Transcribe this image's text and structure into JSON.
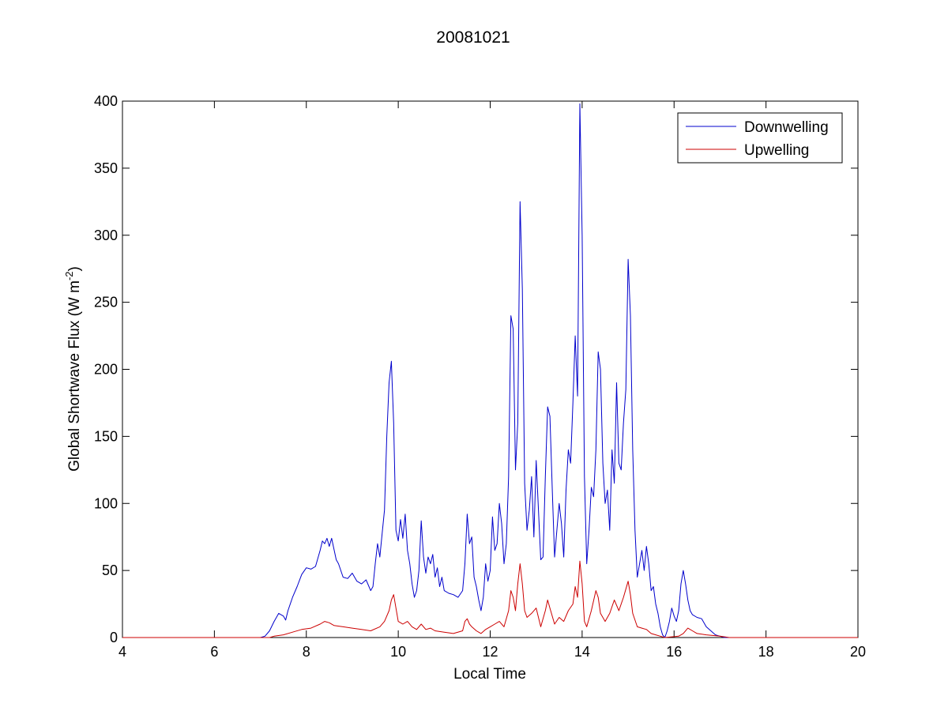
{
  "chart_data": {
    "type": "line",
    "title": "20081021",
    "xlabel": "Local Time",
    "ylabel": "Global Shortwave Flux (W m",
    "ylabel_sup": "-2",
    "ylabel_end": ")",
    "xlim": [
      4,
      20
    ],
    "ylim": [
      0,
      400
    ],
    "xticks": [
      4,
      6,
      8,
      10,
      12,
      14,
      16,
      18,
      20
    ],
    "yticks": [
      0,
      50,
      100,
      150,
      200,
      250,
      300,
      350,
      400
    ],
    "grid": false,
    "legend_position": "top-right",
    "series": [
      {
        "name": "Downwelling",
        "color": "#0000cc",
        "points": [
          [
            4.0,
            0
          ],
          [
            7.0,
            0
          ],
          [
            7.1,
            1
          ],
          [
            7.2,
            5
          ],
          [
            7.3,
            12
          ],
          [
            7.4,
            18
          ],
          [
            7.5,
            16
          ],
          [
            7.55,
            13
          ],
          [
            7.6,
            20
          ],
          [
            7.7,
            30
          ],
          [
            7.8,
            38
          ],
          [
            7.9,
            47
          ],
          [
            8.0,
            52
          ],
          [
            8.1,
            51
          ],
          [
            8.2,
            53
          ],
          [
            8.3,
            65
          ],
          [
            8.35,
            72
          ],
          [
            8.4,
            70
          ],
          [
            8.45,
            74
          ],
          [
            8.5,
            68
          ],
          [
            8.55,
            74
          ],
          [
            8.6,
            66
          ],
          [
            8.65,
            58
          ],
          [
            8.7,
            55
          ],
          [
            8.8,
            45
          ],
          [
            8.9,
            44
          ],
          [
            9.0,
            48
          ],
          [
            9.1,
            42
          ],
          [
            9.2,
            40
          ],
          [
            9.3,
            43
          ],
          [
            9.4,
            35
          ],
          [
            9.45,
            38
          ],
          [
            9.5,
            55
          ],
          [
            9.55,
            70
          ],
          [
            9.6,
            60
          ],
          [
            9.65,
            78
          ],
          [
            9.7,
            95
          ],
          [
            9.75,
            150
          ],
          [
            9.8,
            190
          ],
          [
            9.85,
            206
          ],
          [
            9.9,
            160
          ],
          [
            9.95,
            80
          ],
          [
            10.0,
            72
          ],
          [
            10.05,
            88
          ],
          [
            10.1,
            74
          ],
          [
            10.15,
            92
          ],
          [
            10.2,
            65
          ],
          [
            10.25,
            55
          ],
          [
            10.3,
            40
          ],
          [
            10.35,
            30
          ],
          [
            10.4,
            35
          ],
          [
            10.45,
            50
          ],
          [
            10.5,
            87
          ],
          [
            10.55,
            60
          ],
          [
            10.6,
            48
          ],
          [
            10.65,
            60
          ],
          [
            10.7,
            55
          ],
          [
            10.75,
            62
          ],
          [
            10.8,
            45
          ],
          [
            10.85,
            52
          ],
          [
            10.9,
            38
          ],
          [
            10.95,
            45
          ],
          [
            11.0,
            35
          ],
          [
            11.1,
            33
          ],
          [
            11.2,
            32
          ],
          [
            11.3,
            30
          ],
          [
            11.4,
            35
          ],
          [
            11.45,
            55
          ],
          [
            11.5,
            92
          ],
          [
            11.55,
            70
          ],
          [
            11.6,
            75
          ],
          [
            11.65,
            45
          ],
          [
            11.7,
            38
          ],
          [
            11.75,
            28
          ],
          [
            11.8,
            20
          ],
          [
            11.85,
            30
          ],
          [
            11.9,
            55
          ],
          [
            11.95,
            42
          ],
          [
            12.0,
            50
          ],
          [
            12.05,
            90
          ],
          [
            12.1,
            65
          ],
          [
            12.15,
            70
          ],
          [
            12.2,
            100
          ],
          [
            12.25,
            85
          ],
          [
            12.3,
            55
          ],
          [
            12.35,
            70
          ],
          [
            12.4,
            120
          ],
          [
            12.45,
            240
          ],
          [
            12.5,
            230
          ],
          [
            12.55,
            125
          ],
          [
            12.6,
            160
          ],
          [
            12.65,
            325
          ],
          [
            12.7,
            260
          ],
          [
            12.75,
            115
          ],
          [
            12.8,
            80
          ],
          [
            12.85,
            95
          ],
          [
            12.9,
            120
          ],
          [
            12.95,
            75
          ],
          [
            13.0,
            132
          ],
          [
            13.05,
            95
          ],
          [
            13.1,
            58
          ],
          [
            13.15,
            60
          ],
          [
            13.2,
            120
          ],
          [
            13.25,
            172
          ],
          [
            13.3,
            165
          ],
          [
            13.35,
            110
          ],
          [
            13.4,
            60
          ],
          [
            13.45,
            80
          ],
          [
            13.5,
            100
          ],
          [
            13.55,
            85
          ],
          [
            13.6,
            60
          ],
          [
            13.65,
            110
          ],
          [
            13.7,
            140
          ],
          [
            13.75,
            130
          ],
          [
            13.8,
            175
          ],
          [
            13.85,
            225
          ],
          [
            13.9,
            180
          ],
          [
            13.95,
            398
          ],
          [
            14.0,
            300
          ],
          [
            14.05,
            120
          ],
          [
            14.1,
            55
          ],
          [
            14.15,
            80
          ],
          [
            14.2,
            112
          ],
          [
            14.25,
            105
          ],
          [
            14.3,
            140
          ],
          [
            14.35,
            213
          ],
          [
            14.4,
            200
          ],
          [
            14.45,
            130
          ],
          [
            14.5,
            100
          ],
          [
            14.55,
            110
          ],
          [
            14.6,
            80
          ],
          [
            14.65,
            140
          ],
          [
            14.7,
            115
          ],
          [
            14.75,
            190
          ],
          [
            14.8,
            130
          ],
          [
            14.85,
            125
          ],
          [
            14.9,
            160
          ],
          [
            14.95,
            185
          ],
          [
            15.0,
            282
          ],
          [
            15.05,
            240
          ],
          [
            15.1,
            140
          ],
          [
            15.15,
            80
          ],
          [
            15.2,
            45
          ],
          [
            15.25,
            55
          ],
          [
            15.3,
            65
          ],
          [
            15.35,
            50
          ],
          [
            15.4,
            68
          ],
          [
            15.45,
            55
          ],
          [
            15.5,
            35
          ],
          [
            15.55,
            38
          ],
          [
            15.6,
            25
          ],
          [
            15.65,
            18
          ],
          [
            15.7,
            8
          ],
          [
            15.75,
            2
          ],
          [
            15.8,
            0
          ],
          [
            15.85,
            5
          ],
          [
            15.9,
            12
          ],
          [
            15.95,
            22
          ],
          [
            16.0,
            16
          ],
          [
            16.05,
            12
          ],
          [
            16.1,
            20
          ],
          [
            16.15,
            40
          ],
          [
            16.2,
            50
          ],
          [
            16.25,
            40
          ],
          [
            16.3,
            28
          ],
          [
            16.35,
            20
          ],
          [
            16.4,
            17
          ],
          [
            16.5,
            15
          ],
          [
            16.6,
            14
          ],
          [
            16.7,
            8
          ],
          [
            16.8,
            5
          ],
          [
            16.9,
            2
          ],
          [
            17.0,
            1
          ],
          [
            17.1,
            0
          ],
          [
            20.0,
            0
          ]
        ]
      },
      {
        "name": "Upwelling",
        "color": "#cc0000",
        "points": [
          [
            4.0,
            0
          ],
          [
            7.2,
            0
          ],
          [
            7.3,
            1
          ],
          [
            7.5,
            2
          ],
          [
            7.7,
            4
          ],
          [
            7.9,
            6
          ],
          [
            8.1,
            7
          ],
          [
            8.3,
            10
          ],
          [
            8.4,
            12
          ],
          [
            8.5,
            11
          ],
          [
            8.6,
            9
          ],
          [
            8.8,
            8
          ],
          [
            9.0,
            7
          ],
          [
            9.2,
            6
          ],
          [
            9.4,
            5
          ],
          [
            9.6,
            8
          ],
          [
            9.7,
            12
          ],
          [
            9.8,
            20
          ],
          [
            9.85,
            28
          ],
          [
            9.9,
            32
          ],
          [
            9.95,
            22
          ],
          [
            10.0,
            12
          ],
          [
            10.1,
            10
          ],
          [
            10.2,
            12
          ],
          [
            10.3,
            8
          ],
          [
            10.4,
            6
          ],
          [
            10.5,
            10
          ],
          [
            10.6,
            6
          ],
          [
            10.7,
            7
          ],
          [
            10.8,
            5
          ],
          [
            11.0,
            4
          ],
          [
            11.2,
            3
          ],
          [
            11.4,
            5
          ],
          [
            11.45,
            12
          ],
          [
            11.5,
            14
          ],
          [
            11.55,
            10
          ],
          [
            11.6,
            8
          ],
          [
            11.7,
            5
          ],
          [
            11.8,
            3
          ],
          [
            11.9,
            6
          ],
          [
            12.0,
            8
          ],
          [
            12.1,
            10
          ],
          [
            12.2,
            12
          ],
          [
            12.3,
            8
          ],
          [
            12.4,
            20
          ],
          [
            12.45,
            35
          ],
          [
            12.5,
            30
          ],
          [
            12.55,
            20
          ],
          [
            12.6,
            40
          ],
          [
            12.65,
            55
          ],
          [
            12.7,
            40
          ],
          [
            12.75,
            20
          ],
          [
            12.8,
            15
          ],
          [
            12.9,
            18
          ],
          [
            13.0,
            22
          ],
          [
            13.1,
            8
          ],
          [
            13.2,
            20
          ],
          [
            13.25,
            28
          ],
          [
            13.3,
            22
          ],
          [
            13.4,
            10
          ],
          [
            13.5,
            15
          ],
          [
            13.6,
            12
          ],
          [
            13.7,
            20
          ],
          [
            13.8,
            25
          ],
          [
            13.85,
            38
          ],
          [
            13.9,
            30
          ],
          [
            13.95,
            57
          ],
          [
            14.0,
            40
          ],
          [
            14.05,
            12
          ],
          [
            14.1,
            8
          ],
          [
            14.2,
            20
          ],
          [
            14.3,
            35
          ],
          [
            14.35,
            30
          ],
          [
            14.4,
            18
          ],
          [
            14.5,
            12
          ],
          [
            14.6,
            18
          ],
          [
            14.7,
            28
          ],
          [
            14.8,
            20
          ],
          [
            14.9,
            30
          ],
          [
            15.0,
            42
          ],
          [
            15.05,
            32
          ],
          [
            15.1,
            18
          ],
          [
            15.2,
            8
          ],
          [
            15.3,
            7
          ],
          [
            15.4,
            6
          ],
          [
            15.5,
            3
          ],
          [
            15.6,
            2
          ],
          [
            15.7,
            1
          ],
          [
            15.8,
            0
          ],
          [
            16.1,
            1
          ],
          [
            16.2,
            3
          ],
          [
            16.3,
            7
          ],
          [
            16.4,
            5
          ],
          [
            16.5,
            3
          ],
          [
            16.7,
            2
          ],
          [
            17.0,
            1
          ],
          [
            17.2,
            0
          ],
          [
            20.0,
            0
          ]
        ]
      }
    ]
  }
}
